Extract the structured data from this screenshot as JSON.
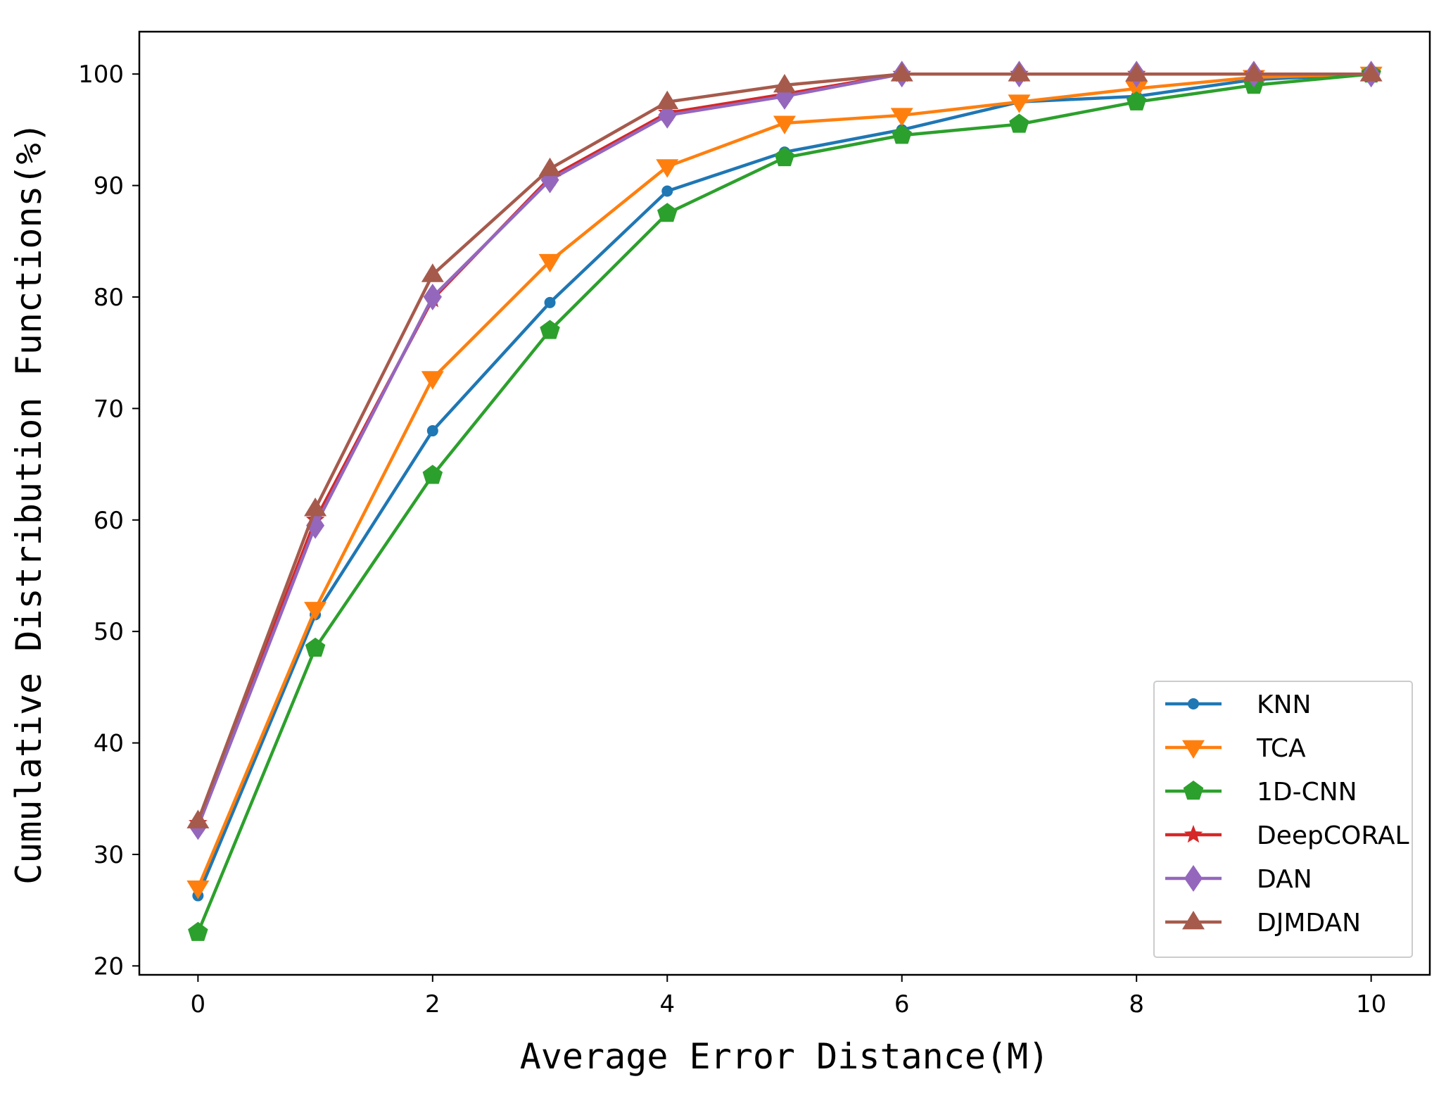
{
  "chart_data": {
    "type": "line",
    "title": "",
    "xlabel": "Average Error Distance(M)",
    "ylabel": "Cumulative Distribution Functions(%)",
    "x": [
      0,
      1,
      2,
      3,
      4,
      5,
      6,
      7,
      8,
      9,
      10
    ],
    "xlim": [
      -0.5,
      10.5
    ],
    "ylim": [
      19.2,
      103.8
    ],
    "xticks": [
      0,
      2,
      4,
      6,
      8,
      10
    ],
    "yticks": [
      20,
      30,
      40,
      50,
      60,
      70,
      80,
      90,
      100
    ],
    "grid": false,
    "legend_position": "bottom-right",
    "series": [
      {
        "name": "KNN",
        "color": "#1f77b4",
        "marker": "circle",
        "values": [
          26.3,
          51.5,
          68.0,
          79.5,
          89.5,
          93.0,
          95.0,
          97.5,
          98.0,
          99.5,
          100.0
        ]
      },
      {
        "name": "TCA",
        "color": "#ff7f0e",
        "marker": "triangle-down",
        "values": [
          27.0,
          52.0,
          72.7,
          83.2,
          91.7,
          95.6,
          96.3,
          97.5,
          98.7,
          99.7,
          100.0
        ]
      },
      {
        "name": "1D-CNN",
        "color": "#2ca02c",
        "marker": "pentagon",
        "values": [
          23.0,
          48.5,
          64.0,
          77.0,
          87.5,
          92.5,
          94.5,
          95.5,
          97.5,
          99.0,
          100.0
        ]
      },
      {
        "name": "DeepCORAL",
        "color": "#d62728",
        "marker": "star",
        "values": [
          32.8,
          60.0,
          79.8,
          90.7,
          96.5,
          98.2,
          100.0,
          100.0,
          100.0,
          100.0,
          100.0
        ]
      },
      {
        "name": "DAN",
        "color": "#9467bd",
        "marker": "diamond",
        "values": [
          32.5,
          59.5,
          80.0,
          90.5,
          96.3,
          98.0,
          100.0,
          100.0,
          100.0,
          100.0,
          100.0
        ]
      },
      {
        "name": "DJMDAN",
        "color": "#a65a4c",
        "marker": "triangle-up",
        "values": [
          33.0,
          61.0,
          82.0,
          91.5,
          97.5,
          99.0,
          100.0,
          100.0,
          100.0,
          100.0,
          100.0
        ]
      }
    ]
  }
}
